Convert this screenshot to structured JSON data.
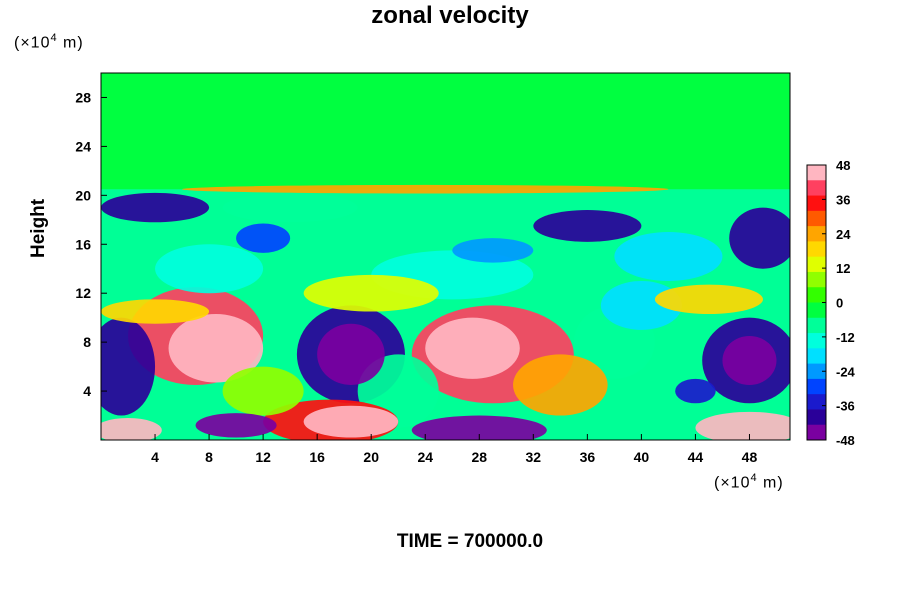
{
  "chart_data": {
    "type": "heatmap",
    "title": "zonal velocity",
    "ylabel": "Height",
    "xlabel": "",
    "x_unit_base": "(×10",
    "x_unit_exp": "4",
    "x_unit_tail": " m)",
    "y_unit_base": "(×10",
    "y_unit_exp": "4",
    "y_unit_tail": " m)",
    "xlim": [
      0,
      51
    ],
    "ylim": [
      0,
      30
    ],
    "x_ticks": [
      "4",
      "8",
      "12",
      "16",
      "20",
      "24",
      "28",
      "32",
      "36",
      "40",
      "44",
      "48"
    ],
    "y_ticks": [
      "4",
      "8",
      "12",
      "16",
      "20",
      "24",
      "28"
    ],
    "colorbar": {
      "min": -48,
      "max": 48,
      "tick_labels": [
        "48",
        "36",
        "24",
        "12",
        "0",
        "-12",
        "-24",
        "-36",
        "-48"
      ],
      "colors": [
        "#ffb6c1",
        "#ff4060",
        "#ff1010",
        "#ff5a00",
        "#ffa500",
        "#ffd800",
        "#e0ff00",
        "#90ff00",
        "#33ff00",
        "#00ff40",
        "#00ff99",
        "#00ffdd",
        "#00e0ff",
        "#0099ff",
        "#0044ff",
        "#1a1acc",
        "#2a0099",
        "#7a00a0"
      ]
    },
    "features": [
      {
        "x": 8.5,
        "y": 7.5,
        "value": 48,
        "rx": 3.5,
        "ry": 2.8
      },
      {
        "x": 7,
        "y": 8.5,
        "value": 40,
        "rx": 5,
        "ry": 4
      },
      {
        "x": 27.5,
        "y": 7.5,
        "value": 48,
        "rx": 3.5,
        "ry": 2.5
      },
      {
        "x": 29,
        "y": 7,
        "value": 38,
        "rx": 6,
        "ry": 4
      },
      {
        "x": 34,
        "y": 4.5,
        "value": 26,
        "rx": 3.5,
        "ry": 2.5
      },
      {
        "x": 18.5,
        "y": 7,
        "value": -48,
        "rx": 2.5,
        "ry": 2.5
      },
      {
        "x": 18.5,
        "y": 7,
        "value": -38,
        "rx": 4,
        "ry": 4
      },
      {
        "x": 1.5,
        "y": 6,
        "value": -40,
        "rx": 2.5,
        "ry": 4
      },
      {
        "x": 48,
        "y": 6.5,
        "value": -48,
        "rx": 2,
        "ry": 2
      },
      {
        "x": 48,
        "y": 6.5,
        "value": -38,
        "rx": 3.5,
        "ry": 3.5
      },
      {
        "x": 18.5,
        "y": 1.5,
        "value": 48,
        "rx": 3.5,
        "ry": 1.3
      },
      {
        "x": 17,
        "y": 1.5,
        "value": 36,
        "rx": 5,
        "ry": 1.8
      },
      {
        "x": 28,
        "y": 0.8,
        "value": -48,
        "rx": 5,
        "ry": 1.2
      },
      {
        "x": 2,
        "y": 0.8,
        "value": 46,
        "rx": 2.5,
        "ry": 1
      },
      {
        "x": 48,
        "y": 1,
        "value": 46,
        "rx": 4,
        "ry": 1.3
      },
      {
        "x": 10,
        "y": 1.2,
        "value": -44,
        "rx": 3,
        "ry": 1
      },
      {
        "x": 4,
        "y": 19,
        "value": -40,
        "rx": 4,
        "ry": 1.2
      },
      {
        "x": 36,
        "y": 17.5,
        "value": -40,
        "rx": 4,
        "ry": 1.3
      },
      {
        "x": 49,
        "y": 16.5,
        "value": -38,
        "rx": 2.5,
        "ry": 2.5
      },
      {
        "x": 12,
        "y": 16.5,
        "value": -30,
        "rx": 2,
        "ry": 1.2
      },
      {
        "x": 29,
        "y": 15.5,
        "value": -26,
        "rx": 3,
        "ry": 1
      },
      {
        "x": 20,
        "y": 12,
        "value": 12,
        "rx": 5,
        "ry": 1.5
      },
      {
        "x": 45,
        "y": 11.5,
        "value": 18,
        "rx": 4,
        "ry": 1.2
      },
      {
        "x": 4,
        "y": 10.5,
        "value": 18,
        "rx": 4,
        "ry": 1
      },
      {
        "x": 24,
        "y": 20.5,
        "value": 24,
        "rx": 18,
        "ry": 0.35
      },
      {
        "x": 40,
        "y": 11,
        "value": -18,
        "rx": 3,
        "ry": 2
      },
      {
        "x": 44,
        "y": 4,
        "value": -34,
        "rx": 1.5,
        "ry": 1
      },
      {
        "x": 12,
        "y": 4,
        "value": 8,
        "rx": 3,
        "ry": 2
      },
      {
        "x": 22,
        "y": 4,
        "value": -10,
        "rx": 3,
        "ry": 3
      },
      {
        "x": 38,
        "y": 8,
        "value": -6,
        "rx": 3,
        "ry": 3
      },
      {
        "x": 26,
        "y": 13.5,
        "value": -14,
        "rx": 6,
        "ry": 2
      },
      {
        "x": 8,
        "y": 14,
        "value": -12,
        "rx": 4,
        "ry": 2
      },
      {
        "x": 42,
        "y": 15,
        "value": -16,
        "rx": 4,
        "ry": 2
      },
      {
        "x": 14,
        "y": 19,
        "value": -8,
        "rx": 5,
        "ry": 1.2
      }
    ],
    "time_label": "TIME = 700000.0"
  }
}
